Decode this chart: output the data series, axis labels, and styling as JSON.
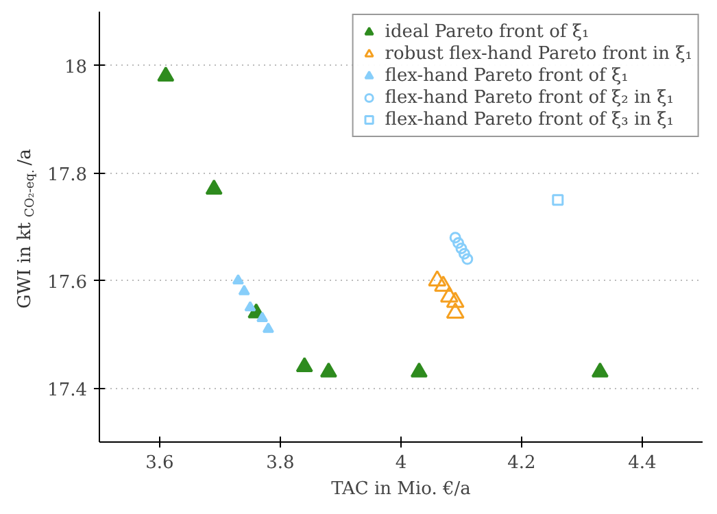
{
  "chart_data": {
    "type": "scatter",
    "xlabel": "TAC in Mio. €/a",
    "ylabel": "GWI in kt$_{CO₂-eq.}$/a",
    "xlim": [
      3.5,
      4.5
    ],
    "ylim": [
      17.3,
      18.1
    ],
    "xticks": [
      3.6,
      3.8,
      4,
      4.2,
      4.4
    ],
    "yticks": [
      17.4,
      17.6,
      17.8,
      18
    ],
    "grid": "y",
    "legend": "top right",
    "series": [
      {
        "name": "ideal Pareto front of ξ₁",
        "color": "#2e8b1e",
        "marker": "triangle",
        "x": [
          3.61,
          3.69,
          3.76,
          3.84,
          3.88,
          4.03,
          4.33
        ],
        "values": [
          17.98,
          17.77,
          17.54,
          17.44,
          17.43,
          17.43,
          17.43
        ]
      },
      {
        "name": "robust flex-hand Pareto front in ξ₁",
        "color": "#f5a020",
        "marker": "triangle_open",
        "x": [
          4.06,
          4.07,
          4.08,
          4.09,
          4.09
        ],
        "values": [
          17.6,
          17.59,
          17.57,
          17.56,
          17.54
        ]
      },
      {
        "name": "flex-hand Pareto front of ξ₁",
        "color": "#87cefa",
        "marker": "triangle_small",
        "x": [
          3.73,
          3.74,
          3.75,
          3.77,
          3.78
        ],
        "values": [
          17.6,
          17.58,
          17.55,
          17.53,
          17.51
        ]
      },
      {
        "name": "flex-hand Pareto front of ξ₂ in ξ₁",
        "color": "#87cefa",
        "marker": "circle_open",
        "x": [
          4.09,
          4.095,
          4.1,
          4.105,
          4.11
        ],
        "values": [
          17.68,
          17.67,
          17.66,
          17.65,
          17.64
        ]
      },
      {
        "name": "flex-hand Pareto front of ξ₃ in ξ₁",
        "color": "#87cefa",
        "marker": "square_open",
        "x": [
          4.26
        ],
        "values": [
          17.75
        ]
      }
    ]
  }
}
